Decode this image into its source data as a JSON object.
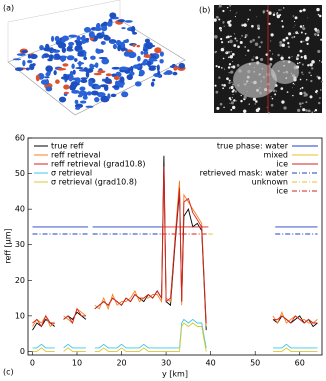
{
  "chart_data": {
    "type": "line",
    "panel_labels": [
      "(a)",
      "(b)",
      "(c)"
    ],
    "xlabel": "y [km]",
    "ylabel": "reff [µm]",
    "xlim": [
      -1,
      65
    ],
    "xticks": [
      0,
      10,
      20,
      30,
      40,
      50,
      60
    ],
    "ylim": [
      -1,
      60
    ],
    "yticks": [
      0,
      10,
      20,
      30,
      40,
      50,
      60
    ],
    "x": [
      0,
      1,
      2,
      3,
      4,
      5,
      6,
      7,
      8,
      9,
      10,
      11,
      12,
      13,
      14,
      15,
      16,
      17,
      18,
      19,
      20,
      21,
      22,
      23,
      24,
      25,
      26,
      27,
      28,
      29,
      29.5,
      30,
      31,
      32,
      33,
      33.5,
      34,
      35,
      36,
      37,
      38,
      39,
      40,
      54,
      55,
      56,
      57,
      58,
      59,
      60,
      61,
      62,
      63,
      64
    ],
    "series": [
      {
        "name": "true reff",
        "color": "#000000",
        "linestyle": "solid",
        "legend": "left",
        "values": [
          6,
          8,
          7,
          9,
          8,
          7,
          null,
          9,
          10,
          9,
          11,
          10,
          9,
          null,
          12,
          13,
          14,
          13,
          15,
          14,
          13,
          15,
          14,
          16,
          15,
          14,
          16,
          15,
          17,
          15,
          55,
          14,
          13,
          30,
          45,
          14,
          38,
          40,
          35,
          36,
          34,
          6,
          null,
          9,
          8,
          10,
          9,
          8,
          9,
          10,
          8,
          9,
          7,
          8
        ]
      },
      {
        "name": "reff retrieval",
        "color": "#f5821f",
        "linestyle": "solid",
        "legend": "left",
        "values": [
          7,
          9,
          8,
          10,
          7,
          8,
          null,
          10,
          9,
          8,
          12,
          11,
          10,
          null,
          13,
          12,
          15,
          12,
          16,
          13,
          14,
          14,
          15,
          17,
          14,
          15,
          15,
          16,
          16,
          14,
          50,
          15,
          14,
          32,
          48,
          13,
          44,
          42,
          40,
          38,
          36,
          7,
          null,
          10,
          8,
          11,
          8,
          9,
          10,
          9,
          9,
          8,
          8,
          9
        ]
      },
      {
        "name": "reff retrieval (grad10.8)",
        "color": "#d62020",
        "linestyle": "solid",
        "legend": "left",
        "values": [
          8,
          9,
          7,
          10,
          8,
          8,
          null,
          9,
          10,
          8,
          12,
          10,
          10,
          null,
          12,
          13,
          14,
          13,
          15,
          14,
          13,
          15,
          14,
          16,
          15,
          15,
          16,
          15,
          17,
          15,
          52,
          14,
          15,
          31,
          46,
          14,
          42,
          43,
          39,
          37,
          35,
          8,
          null,
          9,
          9,
          10,
          9,
          8,
          10,
          9,
          8,
          9,
          8,
          8
        ]
      },
      {
        "name": "σ retrieval",
        "color": "#3ec8e8",
        "linestyle": "solid",
        "legend": "left",
        "values": [
          1,
          1,
          2,
          1,
          1,
          1,
          null,
          1,
          2,
          1,
          1,
          1,
          1,
          null,
          1,
          1,
          2,
          1,
          1,
          1,
          2,
          1,
          1,
          1,
          1,
          2,
          1,
          1,
          1,
          1,
          1,
          1,
          1,
          1,
          1,
          8,
          9,
          8,
          9,
          8,
          8,
          1,
          null,
          1,
          1,
          1,
          2,
          1,
          1,
          1,
          1,
          1,
          1,
          1
        ]
      },
      {
        "name": "σ retrieval (grad10.8)",
        "color": "#d8c830",
        "linestyle": "solid",
        "legend": "left",
        "values": [
          0,
          0,
          1,
          0,
          0,
          0,
          null,
          0,
          1,
          0,
          0,
          0,
          0,
          null,
          0,
          0,
          1,
          0,
          0,
          0,
          1,
          0,
          0,
          0,
          0,
          1,
          0,
          0,
          0,
          0,
          0,
          0,
          0,
          0,
          0,
          7,
          8,
          7,
          8,
          7,
          7,
          0,
          null,
          0,
          0,
          0,
          1,
          0,
          0,
          0,
          0,
          0,
          0,
          0
        ]
      },
      {
        "name": "true phase: water",
        "color": "#1f3fbf",
        "linestyle": "solid",
        "legend": "right",
        "x": [
          0,
          12.5,
          13,
          13.5,
          29,
          40,
          54.5,
          64
        ],
        "values": [
          35,
          35,
          null,
          35,
          35,
          null,
          35,
          35
        ]
      },
      {
        "name": "mixed",
        "color": "#e8c020",
        "linestyle": "solid",
        "legend": "right",
        "x": [],
        "values": []
      },
      {
        "name": "ice",
        "color": "#d62020",
        "linestyle": "solid",
        "legend": "right",
        "x": [
          29,
          39.5
        ],
        "values": [
          35,
          35
        ]
      },
      {
        "name": "retrieved mask: water",
        "color": "#1f3fbf",
        "linestyle": "dashdot",
        "legend": "right",
        "x": [
          0,
          12.5,
          13,
          13.5,
          29,
          40,
          54.5,
          64
        ],
        "values": [
          33,
          33,
          null,
          33,
          33,
          null,
          33,
          33
        ]
      },
      {
        "name": "unknown",
        "color": "#e8c020",
        "linestyle": "dashdot",
        "legend": "right",
        "x": [
          39.5,
          40.5
        ],
        "values": [
          33,
          33
        ]
      },
      {
        "name": "ice",
        "color": "#d62020",
        "linestyle": "dashdot",
        "legend": "right",
        "x": [
          29,
          39.5
        ],
        "values": [
          33,
          33
        ]
      }
    ]
  }
}
